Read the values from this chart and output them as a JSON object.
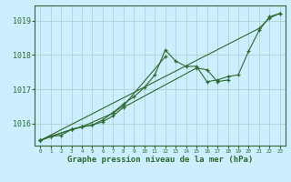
{
  "xlabel": "Graphe pression niveau de la mer (hPa)",
  "background_color": "#cceeff",
  "plot_bg_color": "#cceeff",
  "grid_color": "#aacccc",
  "line_color": "#2d6a2d",
  "border_color": "#336633",
  "ylim": [
    1015.35,
    1019.45
  ],
  "xlim": [
    -0.5,
    23.5
  ],
  "yticks": [
    1016,
    1017,
    1018,
    1019
  ],
  "xticks": [
    0,
    1,
    2,
    3,
    4,
    5,
    6,
    7,
    8,
    9,
    10,
    11,
    12,
    13,
    14,
    15,
    16,
    17,
    18,
    19,
    20,
    21,
    22,
    23
  ],
  "series": [
    {
      "x": [
        0,
        1,
        2,
        3,
        4,
        5,
        6,
        7,
        8,
        9,
        10,
        11,
        12,
        13,
        14,
        15,
        16,
        17,
        18,
        19,
        20,
        21,
        22,
        23
      ],
      "y": [
        1015.5,
        1015.62,
        1015.65,
        1015.82,
        1015.9,
        1015.95,
        1016.1,
        1016.32,
        1016.57,
        1016.78,
        1017.05,
        1017.42,
        1018.15,
        1017.82,
        1017.67,
        1017.67,
        1017.22,
        1017.27,
        1017.37,
        1017.42,
        1018.12,
        1018.72,
        1019.12,
        1019.22
      ]
    },
    {
      "x": [
        0,
        1,
        3,
        4,
        7,
        8,
        12
      ],
      "y": [
        1015.5,
        1015.62,
        1015.82,
        1015.9,
        1016.3,
        1016.52,
        1017.95
      ]
    },
    {
      "x": [
        0,
        3,
        4,
        5,
        6,
        7,
        8,
        15,
        16,
        17,
        18
      ],
      "y": [
        1015.5,
        1015.82,
        1015.9,
        1015.95,
        1016.05,
        1016.22,
        1016.47,
        1017.62,
        1017.57,
        1017.22,
        1017.27
      ]
    },
    {
      "x": [
        0,
        21,
        22,
        23
      ],
      "y": [
        1015.5,
        1018.78,
        1019.08,
        1019.22
      ]
    }
  ]
}
